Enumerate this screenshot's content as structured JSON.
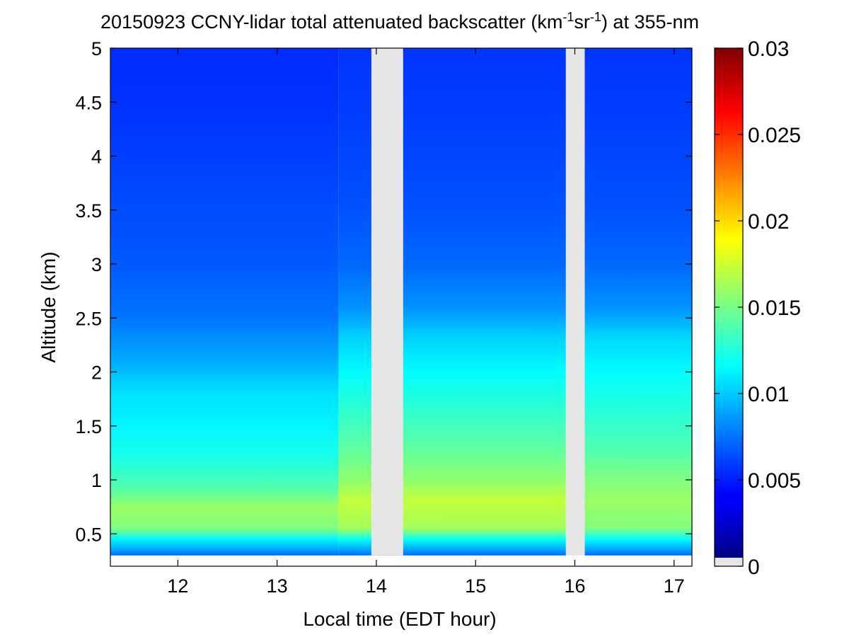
{
  "chart_data": {
    "type": "heatmap",
    "title": {
      "date": "20150923",
      "text_before_units": "CCNY-lidar total attenuated backscatter (km",
      "sup1": "-1",
      "mid": "sr",
      "sup2": "-1",
      "text_after_units": ") at 355-nm"
    },
    "xlabel": "Local time (EDT hour)",
    "ylabel": "Altitude (km)",
    "xlim": [
      11.32,
      17.18
    ],
    "ylim": [
      0.2,
      5.0
    ],
    "x_ticks": [
      12,
      13,
      14,
      15,
      16,
      17
    ],
    "y_ticks": [
      0.5,
      1,
      1.5,
      2,
      2.5,
      3,
      3.5,
      4,
      4.5,
      5
    ],
    "x_tick_labels": [
      "12",
      "13",
      "14",
      "15",
      "16",
      "17"
    ],
    "y_tick_labels": [
      "0.5",
      "1",
      "1.5",
      "2",
      "2.5",
      "3",
      "3.5",
      "4",
      "4.5",
      "5"
    ],
    "data_time_range": [
      11.32,
      17.18
    ],
    "data_altitude_range": [
      0.3,
      5.0
    ],
    "missing_data_intervals": [
      [
        13.95,
        14.27
      ],
      [
        15.91,
        16.1
      ]
    ],
    "missing_color": "#e6e6e6",
    "colorbar": {
      "range": [
        0,
        0.03
      ],
      "ticks": [
        0,
        0.005,
        0.01,
        0.015,
        0.02,
        0.025,
        0.03
      ],
      "tick_labels": [
        "0",
        "0.005",
        "0.01",
        "0.015",
        "0.02",
        "0.025",
        "0.03"
      ],
      "colormap": "jet"
    },
    "profile_segments": [
      {
        "time_range": [
          11.32,
          13.62
        ],
        "profile": [
          [
            0.3,
            0.0068
          ],
          [
            0.35,
            0.0085
          ],
          [
            0.45,
            0.011
          ],
          [
            0.55,
            0.015
          ],
          [
            0.75,
            0.0158
          ],
          [
            0.9,
            0.0138
          ],
          [
            1.2,
            0.012
          ],
          [
            1.5,
            0.011
          ],
          [
            1.8,
            0.0104
          ],
          [
            2.1,
            0.0088
          ],
          [
            2.5,
            0.0072
          ],
          [
            3.0,
            0.0064
          ],
          [
            3.5,
            0.006
          ],
          [
            4.0,
            0.0056
          ],
          [
            4.5,
            0.0052
          ],
          [
            5.0,
            0.005
          ]
        ]
      },
      {
        "time_range": [
          13.62,
          15.91
        ],
        "profile": [
          [
            0.3,
            0.0068
          ],
          [
            0.35,
            0.0085
          ],
          [
            0.45,
            0.0115
          ],
          [
            0.55,
            0.016
          ],
          [
            0.8,
            0.017
          ],
          [
            1.0,
            0.0155
          ],
          [
            1.3,
            0.014
          ],
          [
            1.6,
            0.0128
          ],
          [
            2.0,
            0.0112
          ],
          [
            2.3,
            0.01
          ],
          [
            2.6,
            0.008
          ],
          [
            3.0,
            0.0068
          ],
          [
            3.5,
            0.0062
          ],
          [
            4.0,
            0.0058
          ],
          [
            4.5,
            0.0055
          ],
          [
            5.0,
            0.0053
          ]
        ]
      },
      {
        "time_range": [
          16.1,
          17.18
        ],
        "profile": [
          [
            0.3,
            0.0068
          ],
          [
            0.35,
            0.0085
          ],
          [
            0.45,
            0.0112
          ],
          [
            0.55,
            0.015
          ],
          [
            0.8,
            0.0158
          ],
          [
            1.0,
            0.015
          ],
          [
            1.3,
            0.0135
          ],
          [
            1.6,
            0.0125
          ],
          [
            2.0,
            0.0112
          ],
          [
            2.3,
            0.0102
          ],
          [
            2.6,
            0.008
          ],
          [
            3.0,
            0.0068
          ],
          [
            3.5,
            0.0062
          ],
          [
            4.0,
            0.0058
          ],
          [
            4.5,
            0.0055
          ],
          [
            5.0,
            0.0053
          ]
        ]
      }
    ]
  }
}
